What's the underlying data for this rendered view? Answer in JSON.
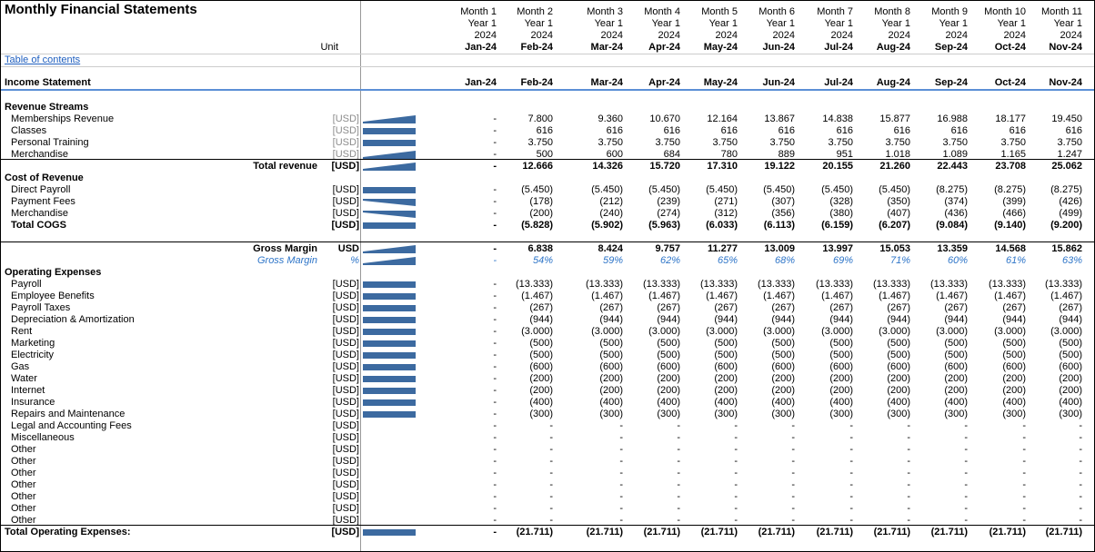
{
  "title": "Monthly Financial Statements",
  "unit_label": "Unit",
  "toc_link": "Table of contents",
  "header": {
    "months": [
      "Month 1",
      "Month 2",
      "Month 3",
      "Month 4",
      "Month 5",
      "Month 6",
      "Month 7",
      "Month 8",
      "Month 9",
      "Month 10",
      "Month 11"
    ],
    "years": [
      "Year 1",
      "Year 1",
      "Year 1",
      "Year 1",
      "Year 1",
      "Year 1",
      "Year 1",
      "Year 1",
      "Year 1",
      "Year 1",
      "Year 1"
    ],
    "calendar_years": [
      "2024",
      "2024",
      "2024",
      "2024",
      "2024",
      "2024",
      "2024",
      "2024",
      "2024",
      "2024",
      "2024"
    ],
    "dates": [
      "Jan-24",
      "Feb-24",
      "Mar-24",
      "Apr-24",
      "May-24",
      "Jun-24",
      "Jul-24",
      "Aug-24",
      "Sep-24",
      "Oct-24",
      "Nov-24"
    ]
  },
  "income_statement": {
    "title": "Income Statement",
    "rows": [
      {
        "label": "Revenue Streams"
      },
      {
        "label": "Memberships Revenue",
        "unit": "[USD]",
        "values": [
          "-",
          "7.800",
          "9.360",
          "10.670",
          "12.164",
          "13.867",
          "14.838",
          "15.877",
          "16.988",
          "18.177",
          "19.450"
        ]
      },
      {
        "label": "Classes",
        "unit": "[USD]",
        "values": [
          "-",
          "616",
          "616",
          "616",
          "616",
          "616",
          "616",
          "616",
          "616",
          "616",
          "616"
        ]
      },
      {
        "label": "Personal Training",
        "unit": "[USD]",
        "values": [
          "-",
          "3.750",
          "3.750",
          "3.750",
          "3.750",
          "3.750",
          "3.750",
          "3.750",
          "3.750",
          "3.750",
          "3.750"
        ]
      },
      {
        "label": "Merchandise",
        "unit": "[USD]",
        "values": [
          "-",
          "500",
          "600",
          "684",
          "780",
          "889",
          "951",
          "1.018",
          "1.089",
          "1.165",
          "1.247"
        ]
      },
      {
        "label": "Total revenue",
        "unit": "[USD]",
        "values": [
          "-",
          "12.666",
          "14.326",
          "15.720",
          "17.310",
          "19.122",
          "20.155",
          "21.260",
          "22.443",
          "23.708",
          "25.062"
        ]
      },
      {
        "label": "Cost  of Revenue"
      },
      {
        "label": "Direct Payroll",
        "unit": "[USD]",
        "values": [
          "-",
          "(5.450)",
          "(5.450)",
          "(5.450)",
          "(5.450)",
          "(5.450)",
          "(5.450)",
          "(5.450)",
          "(8.275)",
          "(8.275)",
          "(8.275)"
        ]
      },
      {
        "label": "Payment Fees",
        "unit": "[USD]",
        "values": [
          "-",
          "(178)",
          "(212)",
          "(239)",
          "(271)",
          "(307)",
          "(328)",
          "(350)",
          "(374)",
          "(399)",
          "(426)"
        ]
      },
      {
        "label": "Merchandise",
        "unit": "[USD]",
        "values": [
          "-",
          "(200)",
          "(240)",
          "(274)",
          "(312)",
          "(356)",
          "(380)",
          "(407)",
          "(436)",
          "(466)",
          "(499)"
        ]
      },
      {
        "label": "Total COGS",
        "unit": "[USD]",
        "values": [
          "-",
          "(5.828)",
          "(5.902)",
          "(5.963)",
          "(6.033)",
          "(6.113)",
          "(6.159)",
          "(6.207)",
          "(9.084)",
          "(9.140)",
          "(9.200)"
        ]
      },
      {
        "label": "Gross Margin",
        "unit": "USD",
        "values": [
          "-",
          "6.838",
          "8.424",
          "9.757",
          "11.277",
          "13.009",
          "13.997",
          "15.053",
          "13.359",
          "14.568",
          "15.862"
        ]
      },
      {
        "label": "Gross Margin",
        "unit": "%",
        "values": [
          "-",
          "54%",
          "59%",
          "62%",
          "65%",
          "68%",
          "69%",
          "71%",
          "60%",
          "61%",
          "63%"
        ]
      },
      {
        "label": "Operating Expenses"
      },
      {
        "label": "Payroll",
        "unit": "[USD]",
        "values": [
          "-",
          "(13.333)",
          "(13.333)",
          "(13.333)",
          "(13.333)",
          "(13.333)",
          "(13.333)",
          "(13.333)",
          "(13.333)",
          "(13.333)",
          "(13.333)"
        ]
      },
      {
        "label": "Employee Benefits",
        "unit": "[USD]",
        "values": [
          "-",
          "(1.467)",
          "(1.467)",
          "(1.467)",
          "(1.467)",
          "(1.467)",
          "(1.467)",
          "(1.467)",
          "(1.467)",
          "(1.467)",
          "(1.467)"
        ]
      },
      {
        "label": "Payroll Taxes",
        "unit": "[USD]",
        "values": [
          "-",
          "(267)",
          "(267)",
          "(267)",
          "(267)",
          "(267)",
          "(267)",
          "(267)",
          "(267)",
          "(267)",
          "(267)"
        ]
      },
      {
        "label": "Depreciation & Amortization",
        "unit": "[USD]",
        "values": [
          "-",
          "(944)",
          "(944)",
          "(944)",
          "(944)",
          "(944)",
          "(944)",
          "(944)",
          "(944)",
          "(944)",
          "(944)"
        ]
      },
      {
        "label": "Rent",
        "unit": "[USD]",
        "values": [
          "-",
          "(3.000)",
          "(3.000)",
          "(3.000)",
          "(3.000)",
          "(3.000)",
          "(3.000)",
          "(3.000)",
          "(3.000)",
          "(3.000)",
          "(3.000)"
        ]
      },
      {
        "label": "Marketing",
        "unit": "[USD]",
        "values": [
          "-",
          "(500)",
          "(500)",
          "(500)",
          "(500)",
          "(500)",
          "(500)",
          "(500)",
          "(500)",
          "(500)",
          "(500)"
        ]
      },
      {
        "label": "Electricity",
        "unit": "[USD]",
        "values": [
          "-",
          "(500)",
          "(500)",
          "(500)",
          "(500)",
          "(500)",
          "(500)",
          "(500)",
          "(500)",
          "(500)",
          "(500)"
        ]
      },
      {
        "label": "Gas",
        "unit": "[USD]",
        "values": [
          "-",
          "(600)",
          "(600)",
          "(600)",
          "(600)",
          "(600)",
          "(600)",
          "(600)",
          "(600)",
          "(600)",
          "(600)"
        ]
      },
      {
        "label": "Water",
        "unit": "[USD]",
        "values": [
          "-",
          "(200)",
          "(200)",
          "(200)",
          "(200)",
          "(200)",
          "(200)",
          "(200)",
          "(200)",
          "(200)",
          "(200)"
        ]
      },
      {
        "label": "Internet",
        "unit": "[USD]",
        "values": [
          "-",
          "(200)",
          "(200)",
          "(200)",
          "(200)",
          "(200)",
          "(200)",
          "(200)",
          "(200)",
          "(200)",
          "(200)"
        ]
      },
      {
        "label": "Insurance",
        "unit": "[USD]",
        "values": [
          "-",
          "(400)",
          "(400)",
          "(400)",
          "(400)",
          "(400)",
          "(400)",
          "(400)",
          "(400)",
          "(400)",
          "(400)"
        ]
      },
      {
        "label": "Repairs and Maintenance",
        "unit": "[USD]",
        "values": [
          "-",
          "(300)",
          "(300)",
          "(300)",
          "(300)",
          "(300)",
          "(300)",
          "(300)",
          "(300)",
          "(300)",
          "(300)"
        ]
      },
      {
        "label": "Legal and Accounting Fees",
        "unit": "[USD]",
        "values": [
          "-",
          "-",
          "-",
          "-",
          "-",
          "-",
          "-",
          "-",
          "-",
          "-",
          "-"
        ]
      },
      {
        "label": "Miscellaneous",
        "unit": "[USD]",
        "values": [
          "-",
          "-",
          "-",
          "-",
          "-",
          "-",
          "-",
          "-",
          "-",
          "-",
          "-"
        ]
      },
      {
        "label": "Other",
        "unit": "[USD]",
        "values": [
          "-",
          "-",
          "-",
          "-",
          "-",
          "-",
          "-",
          "-",
          "-",
          "-",
          "-"
        ]
      },
      {
        "label": "Other",
        "unit": "[USD]",
        "values": [
          "-",
          "-",
          "-",
          "-",
          "-",
          "-",
          "-",
          "-",
          "-",
          "-",
          "-"
        ]
      },
      {
        "label": "Other",
        "unit": "[USD]",
        "values": [
          "-",
          "-",
          "-",
          "-",
          "-",
          "-",
          "-",
          "-",
          "-",
          "-",
          "-"
        ]
      },
      {
        "label": "Other",
        "unit": "[USD]",
        "values": [
          "-",
          "-",
          "-",
          "-",
          "-",
          "-",
          "-",
          "-",
          "-",
          "-",
          "-"
        ]
      },
      {
        "label": "Other",
        "unit": "[USD]",
        "values": [
          "-",
          "-",
          "-",
          "-",
          "-",
          "-",
          "-",
          "-",
          "-",
          "-",
          "-"
        ]
      },
      {
        "label": "Other",
        "unit": "[USD]",
        "values": [
          "-",
          "-",
          "-",
          "-",
          "-",
          "-",
          "-",
          "-",
          "-",
          "-",
          "-"
        ]
      },
      {
        "label": "Other",
        "unit": "[USD]",
        "values": [
          "-",
          "-",
          "-",
          "-",
          "-",
          "-",
          "-",
          "-",
          "-",
          "-",
          "-"
        ]
      },
      {
        "label": "Total Operating Expenses:",
        "unit": "[USD]",
        "values": [
          "-",
          "(21.711)",
          "(21.711)",
          "(21.711)",
          "(21.711)",
          "(21.711)",
          "(21.711)",
          "(21.711)",
          "(21.711)",
          "(21.711)",
          "(21.711)"
        ]
      }
    ]
  }
}
